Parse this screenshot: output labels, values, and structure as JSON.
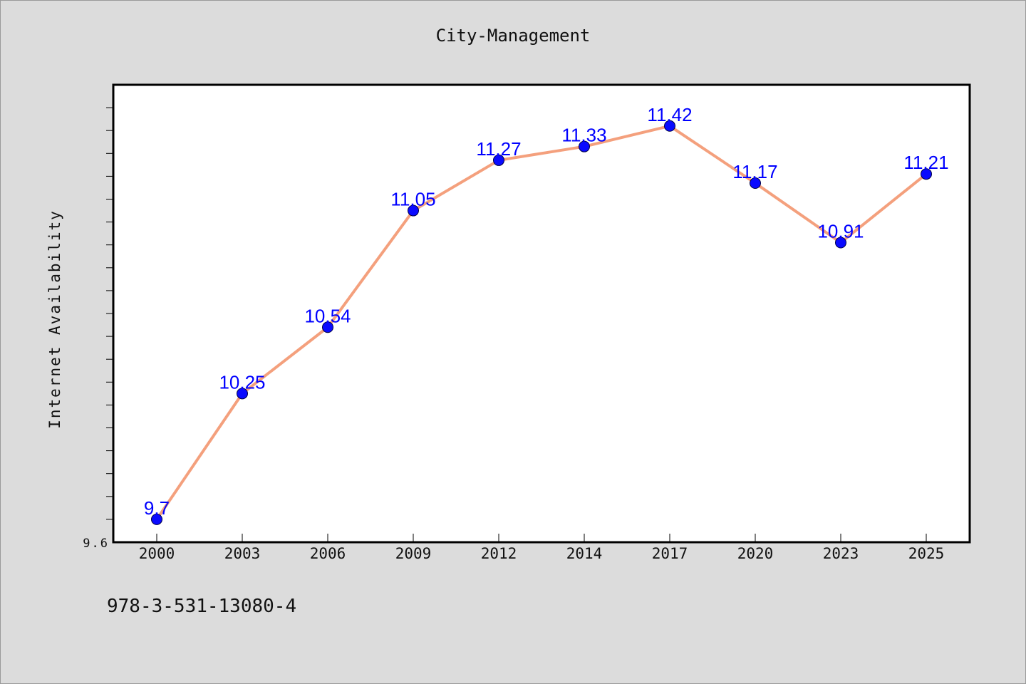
{
  "chart_data": {
    "type": "line",
    "title": "City-Management",
    "xlabel": "",
    "ylabel": "Internet Availability",
    "categories": [
      "2000",
      "2003",
      "2006",
      "2009",
      "2012",
      "2014",
      "2017",
      "2020",
      "2023",
      "2025"
    ],
    "values": [
      9.7,
      10.25,
      10.54,
      11.05,
      11.27,
      11.33,
      11.42,
      11.17,
      10.91,
      11.21
    ],
    "ylim": [
      9.6,
      11.6
    ],
    "yticks_labeled": [
      "9.6"
    ],
    "grid": false,
    "line_color": "#f4a07d",
    "marker_color": "#0a0aff",
    "label_color": "#0000ff"
  },
  "footer": {
    "code": "978-3-531-13080-4"
  },
  "colors": {
    "background": "#dcdcdc",
    "plot_background": "#ffffff"
  }
}
